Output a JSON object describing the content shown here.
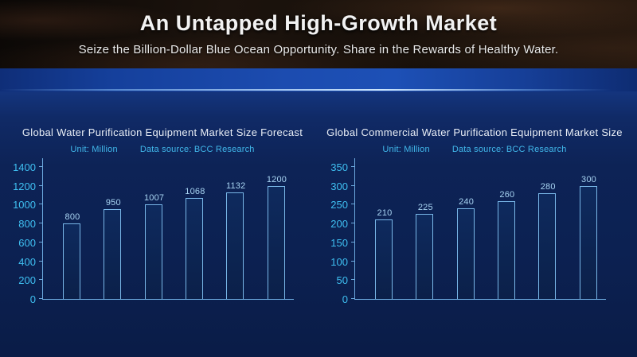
{
  "header": {
    "title": "An Untapped High-Growth Market",
    "subtitle": "Seize the Billion-Dollar Blue Ocean Opportunity. Share in the Rewards of Healthy Water."
  },
  "colors": {
    "band_blue": "#1c4cb0",
    "glow_line": "#d7eeff",
    "main_background": "#0c2152",
    "axis": "#6ca9de",
    "bar_border": "#79b7e8",
    "bar_fill": "#0c2450",
    "tick_label": "#3fc0f2",
    "value_label": "#a8d4f2",
    "meta_text": "#41b7ea",
    "title_text": "#e9eef6"
  },
  "chart_data": [
    {
      "type": "bar",
      "title": "Global Water Purification Equipment Market Size Forecast",
      "unit": "Unit: Million",
      "source": "Data source: BCC Research",
      "values": [
        800,
        950,
        1007,
        1068,
        1132,
        1200
      ],
      "ylim": [
        0,
        1400
      ],
      "ytick_interval": 200,
      "grid": false,
      "data_labels": true,
      "x_tick_labels": []
    },
    {
      "type": "bar",
      "title": "Global Commercial Water Purification Equipment Market Size",
      "unit": "Unit: Million",
      "source": "Data source: BCC Research",
      "values": [
        210,
        225,
        240,
        260,
        280,
        300
      ],
      "ylim": [
        0,
        350
      ],
      "ytick_interval": 50,
      "grid": false,
      "data_labels": true,
      "x_tick_labels": []
    }
  ]
}
